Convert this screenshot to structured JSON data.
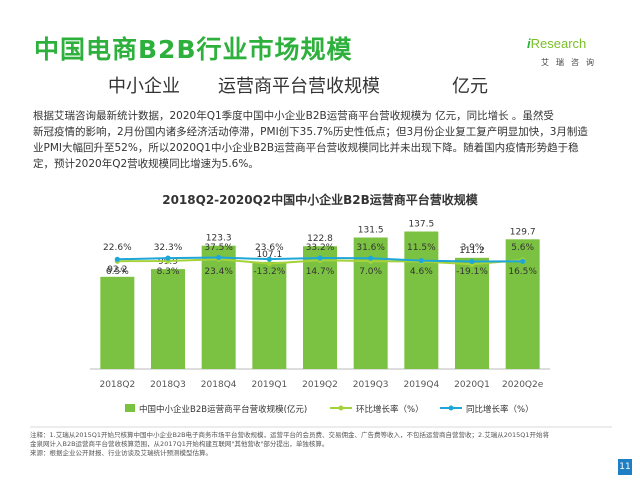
{
  "header": {
    "title": "中国电商B2B行业市场规模",
    "subtitle": [
      "中小企业",
      "运营商平台营收规模",
      "亿元"
    ]
  },
  "logo": {
    "main": "Research",
    "main_prefix": "i",
    "sub": "艾瑞咨询"
  },
  "intro": [
    "根据艾瑞咨询最新统计数据，2020年Q1季度中国中小企业B2B运营商平台营收规模为         亿元，同比增长         。虽然受",
    "新冠疫情的影响，2月份国内诸多经济活动停滞，PMI创下35.7%历史性低点；但3月份企业复工复产明显加快，3月制造",
    "业PMI大幅回升至52%，所以2020Q1中小企业B2B运营商平台营收规模同比并未出现下降。随着国内疫情形势趋于稳",
    "定，预计2020年Q2营收规模同比增速为5.6%。"
  ],
  "chart_data": {
    "type": "bar",
    "title": "2018Q2-2020Q2中国中小企业B2B运营商平台营收规模",
    "categories": [
      "2018Q2",
      "2018Q3",
      "2018Q4",
      "2019Q1",
      "2019Q2",
      "2019Q3",
      "2019Q4",
      "2020Q1",
      "2020Q2e"
    ],
    "series": [
      {
        "name": "中国中小企业B2B运营商平台营收规模(亿元)",
        "type": "bar",
        "values": [
          92.2,
          99.9,
          123.3,
          107.1,
          122.8,
          131.5,
          137.5,
          111.2,
          129.7
        ],
        "labels": [
          "92.2",
          "99.9",
          "123.3",
          "107.1",
          "122.8",
          "131.5",
          "137.5",
          "111.2",
          "129.7"
        ],
        "color": "#7cc242"
      },
      {
        "name": "环比增长率（%）",
        "type": "line",
        "values": [
          6.5,
          8.3,
          23.4,
          -13.2,
          14.7,
          7.0,
          4.6,
          -19.1,
          16.5
        ],
        "labels": [
          "6.5%",
          "8.3%",
          "23.4%",
          "-13.2%",
          "14.7%",
          "7.0%",
          "4.6%",
          "-19.1%",
          "16.5%"
        ],
        "color": "#a5d23a"
      },
      {
        "name": "同比增长率（%）",
        "type": "line",
        "values": [
          22.6,
          32.3,
          37.5,
          23.6,
          33.2,
          31.6,
          11.5,
          3.9,
          5.6
        ],
        "labels": [
          "22.6%",
          "32.3%",
          "37.5%",
          "23.6%",
          "33.2%",
          "31.6%",
          "11.5%",
          "3.9%",
          "5.6%"
        ],
        "color": "#1fa6d8"
      }
    ],
    "legend_position": "bottom",
    "grid": false
  },
  "footnote": [
    "注释：1.艾瑞从2015Q1开始只核算中国中小企业B2B电子商务市场平台营收规模，运营平台的会员费、交易佣金、广告费等收入，不包括运营商自营营收；2.艾瑞从2015Q1开始将",
    "金泉网计入B2B运营商平台营收核算范围，从2017Q1开始构建互联网\"其他营收\"部分提出，单独核算。",
    "来源：根据企业公开财报、行业访谈及艾瑞统计预测模型估算。"
  ],
  "page_number": "11"
}
